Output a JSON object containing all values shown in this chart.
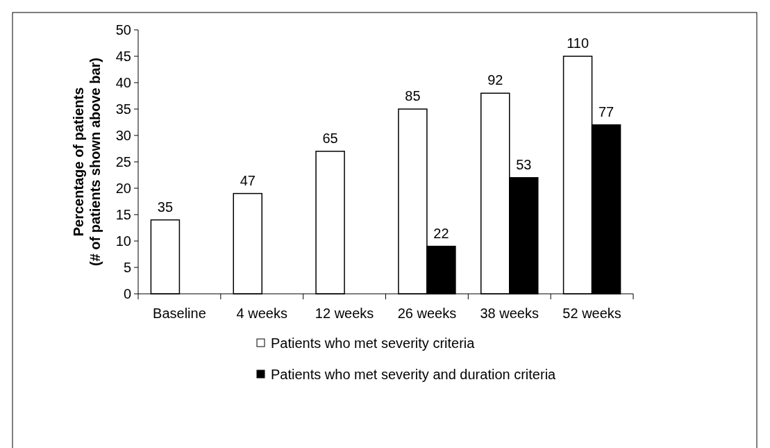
{
  "chart_data": {
    "type": "bar",
    "ylabel": "Percentage of patients\n(# of patients shown above bar)",
    "categories": [
      "Baseline",
      "4 weeks",
      "12 weeks",
      "26 weeks",
      "38 weeks",
      "52 weeks"
    ],
    "ylim": [
      0,
      50
    ],
    "yticks": [
      0,
      5,
      10,
      15,
      20,
      25,
      30,
      35,
      40,
      45,
      50
    ],
    "legend": "bottom",
    "series": [
      {
        "name": "Patients who met severity criteria",
        "color": "#ffffff",
        "values": [
          14,
          19,
          27,
          35,
          38,
          45
        ]
      },
      {
        "name": "Patients who met severity and duration criteria",
        "color": "#000000",
        "values": [
          null,
          null,
          null,
          9,
          22,
          32
        ]
      }
    ],
    "annotations": [
      {
        "text": "35",
        "x": "Baseline",
        "y": 14
      },
      {
        "text": "47",
        "x": "4 weeks",
        "y": 19
      },
      {
        "text": "65",
        "x": "12 weeks",
        "y": 27
      },
      {
        "text": "85",
        "x": "26 weeks",
        "y": 35
      },
      {
        "text": "22",
        "x": "26 weeks",
        "y": 9
      },
      {
        "text": "92",
        "x": "38 weeks",
        "y": 38
      },
      {
        "text": "53",
        "x": "38 weeks",
        "y": 22
      },
      {
        "text": "110",
        "x": "52 weeks",
        "y": 45
      },
      {
        "text": "77",
        "x": "52 weeks",
        "y": 32
      }
    ]
  }
}
